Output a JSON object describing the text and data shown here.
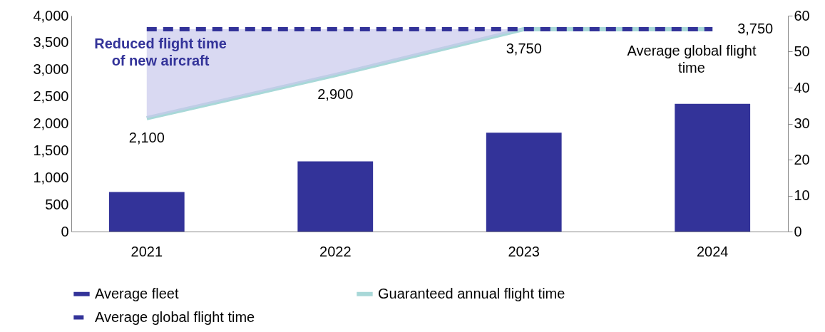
{
  "chart_data": {
    "type": "bar",
    "categories": [
      "2021",
      "2022",
      "2023",
      "2024"
    ],
    "series": [
      {
        "name": "Average fleet",
        "axis": "y2",
        "color": "#333399",
        "values": [
          11,
          19.5,
          27.5,
          35.5
        ]
      },
      {
        "name": "Guaranteed annual flight time",
        "type": "line",
        "color": "#a8d8d8",
        "line_style": "solid",
        "values": [
          2100,
          2900,
          3750,
          3750
        ],
        "value_labels": [
          "2,100",
          "2,900",
          "3,750",
          null
        ]
      },
      {
        "name": "Average global flight time",
        "type": "line",
        "color": "#333399",
        "line_style": "dashed",
        "values": [
          3750,
          3750,
          3750,
          3750
        ],
        "value_labels": [
          null,
          null,
          null,
          "3,750"
        ],
        "lower": [
          2100,
          2900,
          3750,
          3750
        ],
        "upper": [
          3750,
          3750,
          3750,
          3750
        ]
      }
    ],
    "ylim": [
      0,
      4000
    ],
    "yticks": [
      0,
      500,
      {
        "value": 1000,
        "label": "1,000"
      },
      {
        "value": 1500,
        "label": "1,500"
      },
      {
        "value": 2000,
        "label": "2,000"
      },
      {
        "value": 2500,
        "label": "2,500"
      },
      {
        "value": 3000,
        "label": "3,000"
      },
      {
        "value": 3500,
        "label": "3,500"
      },
      {
        "value": 4000,
        "label": "4,000"
      }
    ],
    "y2lim": [
      0,
      60
    ],
    "y2ticks": [
      0,
      10,
      20,
      30,
      40,
      50,
      60
    ],
    "annotations": [
      "Reduced flight time of new aircraft",
      "Average global flight time"
    ],
    "grid": false,
    "legend": "bottom"
  }
}
